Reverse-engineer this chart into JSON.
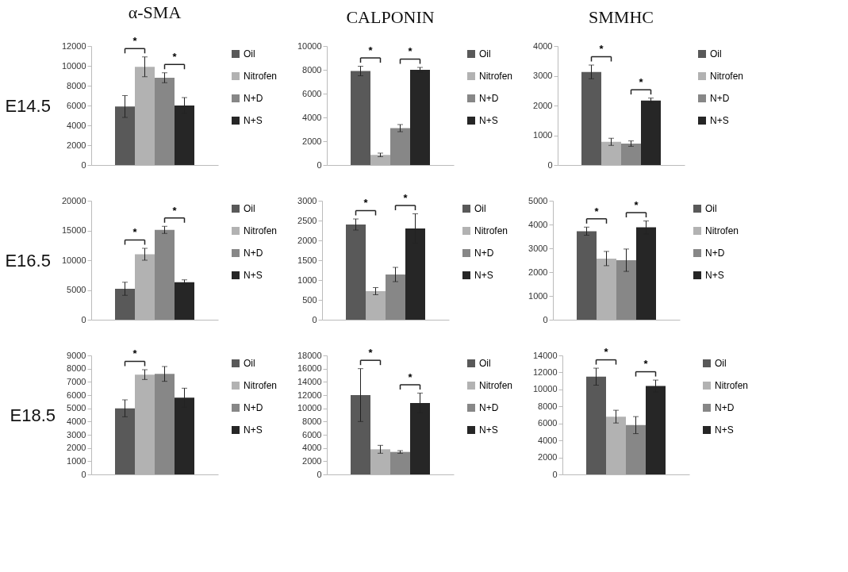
{
  "chart_data": [
    {
      "type": "bar",
      "title": "α-SMA",
      "ylabel": "E14.5",
      "categories": [
        null
      ],
      "tick_labels": "y",
      "legend": "right",
      "ylim": [
        0,
        12000
      ],
      "yticks": [
        0,
        2000,
        4000,
        6000,
        8000,
        10000,
        12000
      ],
      "annotations": [
        "*",
        "*"
      ],
      "series": [
        {
          "name": "Oil",
          "color": "#595959",
          "values": [
            5900
          ],
          "errors": [
            1100
          ]
        },
        {
          "name": "Nitrofen",
          "color": "#b2b2b2",
          "values": [
            9900
          ],
          "errors": [
            1000
          ]
        },
        {
          "name": "N+D",
          "color": "#878787",
          "values": [
            8800
          ],
          "errors": [
            500
          ]
        },
        {
          "name": "N+S",
          "color": "#262626",
          "values": [
            6000
          ],
          "errors": [
            800
          ]
        }
      ]
    },
    {
      "type": "bar",
      "title": "CALPONIN",
      "categories": [
        null
      ],
      "tick_labels": "y",
      "legend": "right",
      "ylim": [
        0,
        10000
      ],
      "yticks": [
        0,
        2000,
        4000,
        6000,
        8000,
        10000
      ],
      "annotations": [
        "*",
        "*"
      ],
      "series": [
        {
          "name": "Oil",
          "color": "#595959",
          "values": [
            7900
          ],
          "errors": [
            400
          ]
        },
        {
          "name": "Nitrofen",
          "color": "#b2b2b2",
          "values": [
            850
          ],
          "errors": [
            150
          ]
        },
        {
          "name": "N+D",
          "color": "#878787",
          "values": [
            3100
          ],
          "errors": [
            300
          ]
        },
        {
          "name": "N+S",
          "color": "#262626",
          "values": [
            8000
          ],
          "errors": [
            200
          ]
        }
      ]
    },
    {
      "type": "bar",
      "title": "SMMHC",
      "categories": [
        null
      ],
      "tick_labels": "y",
      "legend": "right",
      "ylim": [
        0,
        4000
      ],
      "yticks": [
        0,
        1000,
        2000,
        3000,
        4000
      ],
      "annotations": [
        "*",
        "*"
      ],
      "series": [
        {
          "name": "Oil",
          "color": "#595959",
          "values": [
            3130
          ],
          "errors": [
            230
          ]
        },
        {
          "name": "Nitrofen",
          "color": "#b2b2b2",
          "values": [
            780
          ],
          "errors": [
            120
          ]
        },
        {
          "name": "N+D",
          "color": "#878787",
          "values": [
            720
          ],
          "errors": [
            90
          ]
        },
        {
          "name": "N+S",
          "color": "#262626",
          "values": [
            2170
          ],
          "errors": [
            80
          ]
        }
      ]
    },
    {
      "type": "bar",
      "ylabel": "E16.5",
      "categories": [
        null
      ],
      "tick_labels": "y",
      "legend": "right",
      "ylim": [
        0,
        20000
      ],
      "yticks": [
        0,
        5000,
        10000,
        15000,
        20000
      ],
      "annotations": [
        "*",
        "*"
      ],
      "series": [
        {
          "name": "Oil",
          "color": "#595959",
          "values": [
            5200
          ],
          "errors": [
            1100
          ]
        },
        {
          "name": "Nitrofen",
          "color": "#b2b2b2",
          "values": [
            11000
          ],
          "errors": [
            1000
          ]
        },
        {
          "name": "N+D",
          "color": "#878787",
          "values": [
            15100
          ],
          "errors": [
            600
          ]
        },
        {
          "name": "N+S",
          "color": "#262626",
          "values": [
            6300
          ],
          "errors": [
            400
          ]
        }
      ]
    },
    {
      "type": "bar",
      "categories": [
        null
      ],
      "tick_labels": "y",
      "legend": "right",
      "ylim": [
        0,
        3000
      ],
      "yticks": [
        0,
        500,
        1000,
        1500,
        2000,
        2500,
        3000
      ],
      "annotations": [
        "*",
        "*"
      ],
      "series": [
        {
          "name": "Oil",
          "color": "#595959",
          "values": [
            2400
          ],
          "errors": [
            140
          ]
        },
        {
          "name": "Nitrofen",
          "color": "#b2b2b2",
          "values": [
            720
          ],
          "errors": [
            90
          ]
        },
        {
          "name": "N+D",
          "color": "#878787",
          "values": [
            1140
          ],
          "errors": [
            180
          ]
        },
        {
          "name": "N+S",
          "color": "#262626",
          "values": [
            2300
          ],
          "errors": [
            370
          ]
        }
      ]
    },
    {
      "type": "bar",
      "categories": [
        null
      ],
      "tick_labels": "y",
      "legend": "right",
      "ylim": [
        0,
        5000
      ],
      "yticks": [
        0,
        1000,
        2000,
        3000,
        4000,
        5000
      ],
      "annotations": [
        "*",
        "*"
      ],
      "series": [
        {
          "name": "Oil",
          "color": "#595959",
          "values": [
            3720
          ],
          "errors": [
            170
          ]
        },
        {
          "name": "Nitrofen",
          "color": "#b2b2b2",
          "values": [
            2570
          ],
          "errors": [
            300
          ]
        },
        {
          "name": "N+D",
          "color": "#878787",
          "values": [
            2500
          ],
          "errors": [
            470
          ]
        },
        {
          "name": "N+S",
          "color": "#262626",
          "values": [
            3880
          ],
          "errors": [
            270
          ]
        }
      ]
    },
    {
      "type": "bar",
      "ylabel": "E18.5",
      "categories": [
        null
      ],
      "tick_labels": "y",
      "legend": "right",
      "ylim": [
        0,
        9000
      ],
      "yticks": [
        0,
        1000,
        2000,
        3000,
        4000,
        5000,
        6000,
        7000,
        8000,
        9000
      ],
      "annotations": [
        "*"
      ],
      "series": [
        {
          "name": "Oil",
          "color": "#595959",
          "values": [
            5000
          ],
          "errors": [
            640
          ]
        },
        {
          "name": "Nitrofen",
          "color": "#b2b2b2",
          "values": [
            7550
          ],
          "errors": [
            370
          ]
        },
        {
          "name": "N+D",
          "color": "#878787",
          "values": [
            7600
          ],
          "errors": [
            560
          ]
        },
        {
          "name": "N+S",
          "color": "#262626",
          "values": [
            5800
          ],
          "errors": [
            720
          ]
        }
      ]
    },
    {
      "type": "bar",
      "categories": [
        null
      ],
      "tick_labels": "y",
      "legend": "right",
      "ylim": [
        0,
        18000
      ],
      "yticks": [
        0,
        2000,
        4000,
        6000,
        8000,
        10000,
        12000,
        14000,
        16000,
        18000
      ],
      "annotations": [
        "*",
        "*"
      ],
      "series": [
        {
          "name": "Oil",
          "color": "#595959",
          "values": [
            12000
          ],
          "errors": [
            4000
          ]
        },
        {
          "name": "Nitrofen",
          "color": "#b2b2b2",
          "values": [
            3800
          ],
          "errors": [
            600
          ]
        },
        {
          "name": "N+D",
          "color": "#878787",
          "values": [
            3400
          ],
          "errors": [
            200
          ]
        },
        {
          "name": "N+S",
          "color": "#262626",
          "values": [
            10800
          ],
          "errors": [
            1500
          ]
        }
      ]
    },
    {
      "type": "bar",
      "categories": [
        null
      ],
      "tick_labels": "y",
      "legend": "right",
      "ylim": [
        0,
        14000
      ],
      "yticks": [
        0,
        2000,
        4000,
        6000,
        8000,
        10000,
        12000,
        14000
      ],
      "annotations": [
        "*",
        "*"
      ],
      "series": [
        {
          "name": "Oil",
          "color": "#595959",
          "values": [
            11500
          ],
          "errors": [
            1000
          ]
        },
        {
          "name": "Nitrofen",
          "color": "#b2b2b2",
          "values": [
            6800
          ],
          "errors": [
            750
          ]
        },
        {
          "name": "N+D",
          "color": "#878787",
          "values": [
            5800
          ],
          "errors": [
            1000
          ]
        },
        {
          "name": "N+S",
          "color": "#262626",
          "values": [
            10400
          ],
          "errors": [
            700
          ]
        }
      ]
    }
  ]
}
